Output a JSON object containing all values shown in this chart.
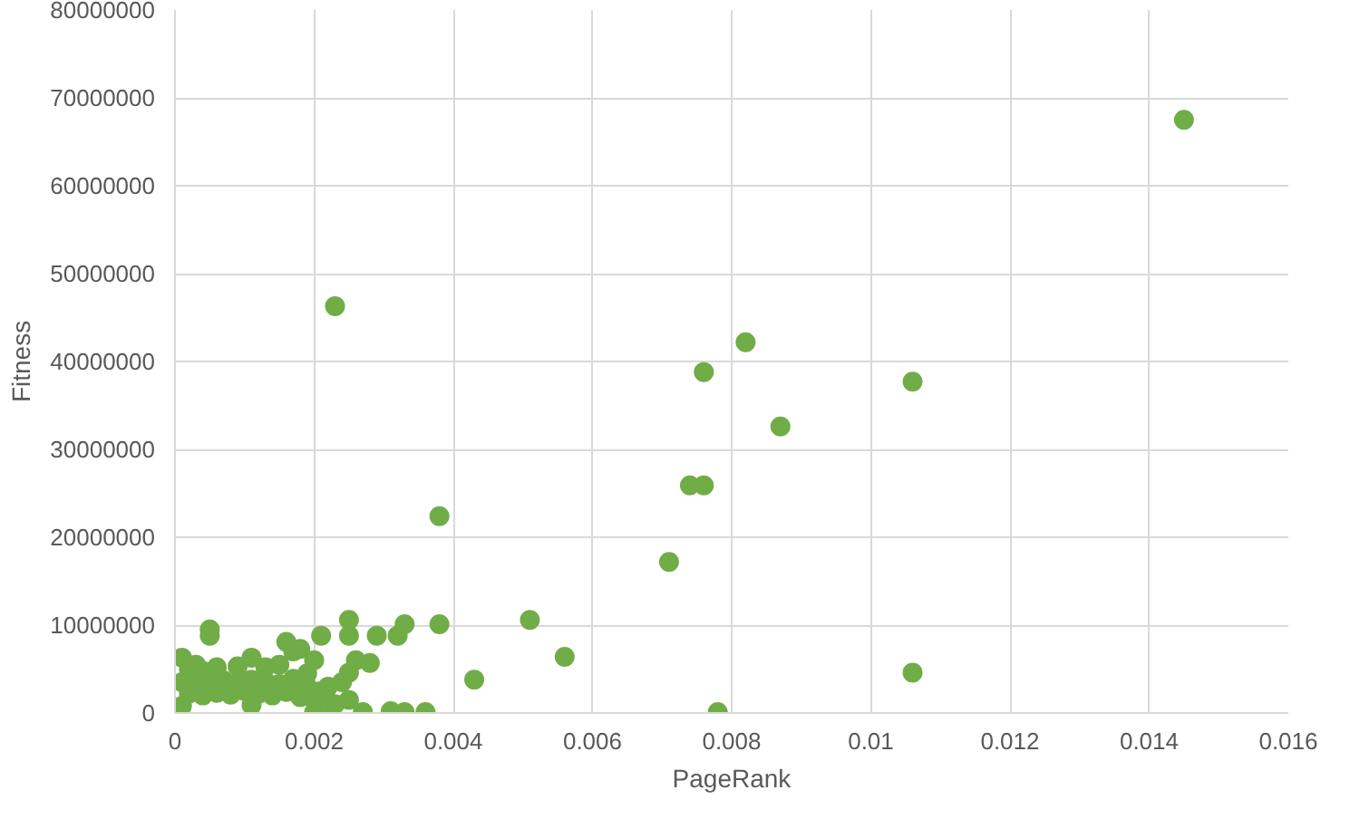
{
  "chart_data": {
    "type": "scatter",
    "xlabel": "PageRank",
    "ylabel": "Fitness",
    "xlim": [
      0,
      0.016
    ],
    "ylim": [
      0,
      80000000
    ],
    "xticks": [
      0,
      0.002,
      0.004,
      0.006,
      0.008,
      0.01,
      0.012,
      0.014,
      0.016
    ],
    "yticks": [
      0,
      10000000,
      20000000,
      30000000,
      40000000,
      50000000,
      60000000,
      70000000,
      80000000
    ],
    "grid": true,
    "marker": "circle",
    "series": [
      {
        "color": "#70ad47",
        "x": [
          0.0145,
          0.0023,
          0.0082,
          0.0076,
          0.0106,
          0.0087,
          0.0074,
          0.0076,
          0.0071,
          0.0038,
          0.0051,
          0.0056,
          0.0043,
          0.0106,
          0.0078,
          0.0038,
          0.0033,
          0.0032,
          0.0029,
          0.0025,
          0.0025,
          0.0021,
          0.0025,
          0.0026,
          0.0028,
          0.0025,
          0.0027,
          0.0031,
          0.0033,
          0.0036,
          0.0005,
          0.0005,
          0.0016,
          0.0018,
          0.002,
          0.0001,
          0.0002,
          0.0003,
          0.0004,
          0.0006,
          0.0009,
          0.0011,
          0.0013,
          0.0015,
          0.0017,
          0.0019,
          0.0022,
          0.0024,
          0.0001,
          0.0003,
          0.0005,
          0.0007,
          0.0009,
          0.0011,
          0.0013,
          0.0015,
          0.0017,
          0.0019,
          0.0021,
          0.0023,
          0.0002,
          0.0004,
          0.0006,
          0.0008,
          0.001,
          0.0012,
          0.0014,
          0.0016,
          0.0018,
          0.002,
          0.0022,
          0.0001,
          0.0011,
          0.002
        ],
        "values": [
          67500000,
          46300000,
          42200000,
          38800000,
          37700000,
          32600000,
          25900000,
          25900000,
          17200000,
          22400000,
          10600000,
          6400000,
          3800000,
          4600000,
          100000,
          10100000,
          10100000,
          8800000,
          8800000,
          10600000,
          8800000,
          8800000,
          4600000,
          6000000,
          5700000,
          1500000,
          100000,
          200000,
          100000,
          100000,
          9500000,
          8800000,
          8100000,
          7300000,
          6000000,
          6300000,
          5000000,
          5500000,
          4800000,
          5200000,
          5300000,
          6300000,
          5200000,
          5500000,
          7000000,
          4500000,
          3000000,
          3500000,
          3500000,
          3800000,
          3600000,
          3700000,
          3400000,
          3800000,
          3600000,
          3300000,
          3900000,
          3000000,
          2500000,
          1000000,
          2200000,
          2000000,
          2300000,
          2100000,
          2500000,
          2200000,
          2000000,
          2400000,
          1800000,
          1500000,
          1200000,
          800000,
          900000,
          100000
        ]
      }
    ]
  }
}
